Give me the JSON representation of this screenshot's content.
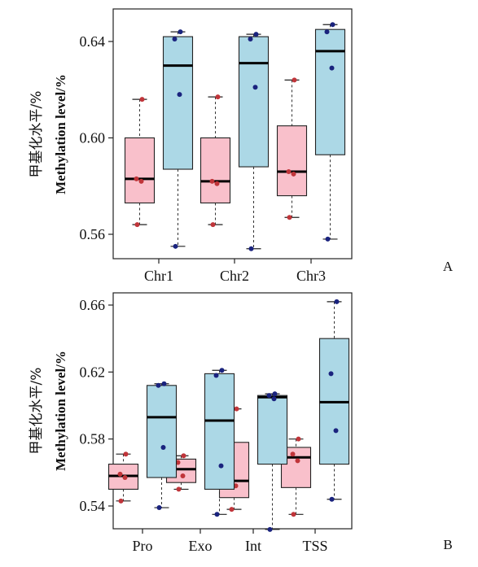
{
  "chart_data": [
    {
      "type": "boxplot",
      "panel_label": "A",
      "ylabel_cn": "甲基化水平/%",
      "ylabel_en": "Methylation level/%",
      "categories": [
        "Chr1",
        "Chr2",
        "Chr3"
      ],
      "yticks": [
        "0.56",
        "0.60",
        "0.64"
      ],
      "ylim": [
        0.552,
        0.652
      ],
      "colors": {
        "pink": "#f9c0cb",
        "blue": "#acd8e6",
        "pink_dot": "#c0353a",
        "blue_dot": "#1a237e"
      },
      "series": [
        {
          "color": "pink",
          "boxes": [
            {
              "min": 0.564,
              "q1": 0.573,
              "median": 0.583,
              "q3": 0.6,
              "max": 0.616,
              "points": [
                0.616,
                0.583,
                0.582,
                0.564
              ]
            },
            {
              "min": 0.564,
              "q1": 0.573,
              "median": 0.582,
              "q3": 0.6,
              "max": 0.617,
              "points": [
                0.617,
                0.582,
                0.581,
                0.564
              ]
            },
            {
              "min": 0.567,
              "q1": 0.576,
              "median": 0.586,
              "q3": 0.605,
              "max": 0.624,
              "points": [
                0.624,
                0.586,
                0.585,
                0.567
              ]
            }
          ]
        },
        {
          "color": "blue",
          "boxes": [
            {
              "min": 0.555,
              "q1": 0.587,
              "median": 0.63,
              "q3": 0.642,
              "max": 0.644,
              "points": [
                0.644,
                0.641,
                0.618,
                0.555
              ]
            },
            {
              "min": 0.554,
              "q1": 0.588,
              "median": 0.631,
              "q3": 0.642,
              "max": 0.643,
              "points": [
                0.643,
                0.641,
                0.621,
                0.554
              ]
            },
            {
              "min": 0.558,
              "q1": 0.593,
              "median": 0.636,
              "q3": 0.645,
              "max": 0.647,
              "points": [
                0.647,
                0.644,
                0.629,
                0.558
              ]
            }
          ]
        }
      ]
    },
    {
      "type": "boxplot",
      "panel_label": "B",
      "ylabel_cn": "甲基化水平/%",
      "ylabel_en": "Methylation level/%",
      "categories": [
        "Pro",
        "Exo",
        "Int",
        "TSS"
      ],
      "yticks": [
        "0.54",
        "0.58",
        "0.62",
        "0.66"
      ],
      "ylim": [
        0.528,
        0.668
      ],
      "colors": {
        "pink": "#f9c0cb",
        "blue": "#acd8e6",
        "pink_dot": "#c0353a",
        "blue_dot": "#1a237e"
      },
      "series": [
        {
          "color": "pink",
          "boxes": [
            {
              "min": 0.543,
              "q1": 0.55,
              "median": 0.558,
              "q3": 0.565,
              "max": 0.571,
              "points": [
                0.571,
                0.559,
                0.557,
                0.543
              ]
            },
            {
              "min": 0.55,
              "q1": 0.554,
              "median": 0.562,
              "q3": 0.568,
              "max": 0.57,
              "points": [
                0.57,
                0.566,
                0.558,
                0.55
              ]
            },
            {
              "min": 0.538,
              "q1": 0.545,
              "median": 0.555,
              "q3": 0.578,
              "max": 0.598,
              "points": [
                0.598,
                0.557,
                0.552,
                0.538
              ]
            },
            {
              "min": 0.535,
              "q1": 0.551,
              "median": 0.569,
              "q3": 0.575,
              "max": 0.58,
              "points": [
                0.58,
                0.571,
                0.567,
                0.535
              ]
            }
          ]
        },
        {
          "color": "blue",
          "boxes": [
            {
              "min": 0.539,
              "q1": 0.557,
              "median": 0.593,
              "q3": 0.612,
              "max": 0.613,
              "points": [
                0.613,
                0.612,
                0.575,
                0.539
              ]
            },
            {
              "min": 0.535,
              "q1": 0.55,
              "median": 0.591,
              "q3": 0.619,
              "max": 0.621,
              "points": [
                0.621,
                0.618,
                0.564,
                0.535
              ]
            },
            {
              "min": 0.526,
              "q1": 0.565,
              "median": 0.605,
              "q3": 0.606,
              "max": 0.607,
              "points": [
                0.607,
                0.606,
                0.604,
                0.526
              ]
            },
            {
              "min": 0.544,
              "q1": 0.565,
              "median": 0.602,
              "q3": 0.64,
              "max": 0.662,
              "points": [
                0.662,
                0.619,
                0.585,
                0.544
              ]
            }
          ]
        }
      ]
    }
  ]
}
